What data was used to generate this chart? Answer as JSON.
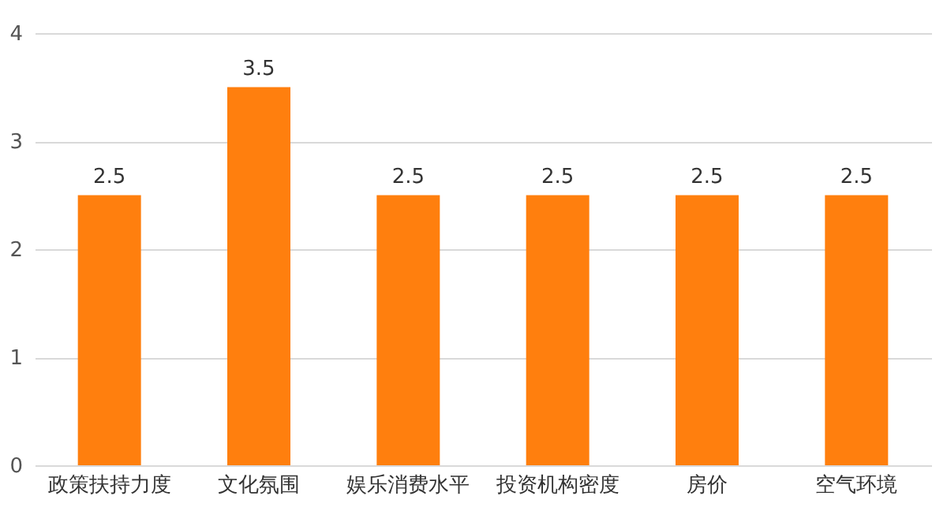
{
  "chart_data": {
    "type": "bar",
    "categories": [
      "政策扶持力度",
      "文化氛围",
      "娱乐消费水平",
      "投资机构密度",
      "房价",
      "空气环境"
    ],
    "values": [
      2.5,
      3.5,
      2.5,
      2.5,
      2.5,
      2.5
    ],
    "color": "#ff7f0e",
    "ylim": [
      0,
      4
    ],
    "yticks": [
      0,
      1,
      2,
      3,
      4
    ],
    "grid": "y",
    "data_labels": true
  }
}
